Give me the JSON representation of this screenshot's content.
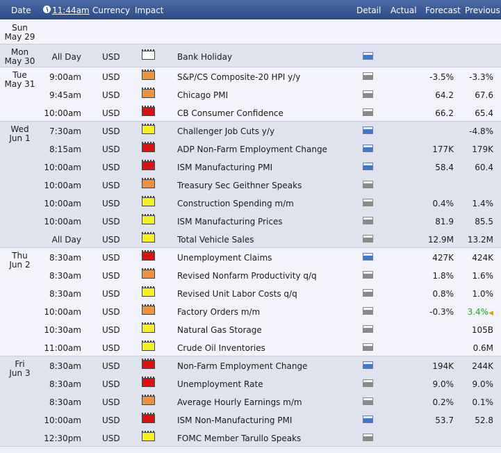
{
  "header": {
    "date": "Date",
    "time": "11:44am",
    "currency": "Currency",
    "impact": "Impact",
    "detail": "Detail",
    "actual": "Actual",
    "forecast": "Forecast",
    "previous": "Previous"
  },
  "colors": {
    "high": "#e01010",
    "medium": "#f3913a",
    "low": "#f7f21c",
    "holiday": "#ffffff",
    "header": "#2c4b87",
    "up": "#22a022"
  },
  "days": [
    {
      "day": "Sun",
      "date": "May 29",
      "events": []
    },
    {
      "day": "Mon",
      "date": "May 30",
      "events": [
        {
          "time": "All Day",
          "currency": "USD",
          "impact": "none",
          "event": "Bank Holiday",
          "detail": "blue-icon",
          "forecast": "",
          "previous": ""
        }
      ]
    },
    {
      "day": "Tue",
      "date": "May 31",
      "events": [
        {
          "time": "9:00am",
          "currency": "USD",
          "impact": "medium",
          "event": "S&P/CS Composite-20 HPI y/y",
          "detail": "gray-icon",
          "forecast": "-3.5%",
          "previous": "-3.3%"
        },
        {
          "time": "9:45am",
          "currency": "USD",
          "impact": "medium",
          "event": "Chicago PMI",
          "detail": "gray-icon",
          "forecast": "64.2",
          "previous": "67.6"
        },
        {
          "time": "10:00am",
          "currency": "USD",
          "impact": "high",
          "event": "CB Consumer Confidence",
          "detail": "gray-icon",
          "forecast": "66.2",
          "previous": "65.4"
        }
      ]
    },
    {
      "day": "Wed",
      "date": "Jun 1",
      "events": [
        {
          "time": "7:30am",
          "currency": "USD",
          "impact": "low",
          "event": "Challenger Job Cuts y/y",
          "detail": "blue-icon",
          "forecast": "",
          "previous": "-4.8%"
        },
        {
          "time": "8:15am",
          "currency": "USD",
          "impact": "high",
          "event": "ADP Non-Farm Employment Change",
          "detail": "blue-icon",
          "forecast": "177K",
          "previous": "179K"
        },
        {
          "time": "10:00am",
          "currency": "USD",
          "impact": "high",
          "event": "ISM Manufacturing PMI",
          "detail": "blue-icon",
          "forecast": "58.4",
          "previous": "60.4"
        },
        {
          "time": "10:00am",
          "currency": "USD",
          "impact": "medium",
          "event": "Treasury Sec Geithner Speaks",
          "detail": "gray-icon",
          "forecast": "",
          "previous": ""
        },
        {
          "time": "10:00am",
          "currency": "USD",
          "impact": "low",
          "event": "Construction Spending m/m",
          "detail": "gray-icon",
          "forecast": "0.4%",
          "previous": "1.4%"
        },
        {
          "time": "10:00am",
          "currency": "USD",
          "impact": "low",
          "event": "ISM Manufacturing Prices",
          "detail": "gray-icon",
          "forecast": "81.9",
          "previous": "85.5"
        },
        {
          "time": "All Day",
          "currency": "USD",
          "impact": "low",
          "event": "Total Vehicle Sales",
          "detail": "gray-icon",
          "forecast": "12.9M",
          "previous": "13.2M"
        }
      ]
    },
    {
      "day": "Thu",
      "date": "Jun 2",
      "events": [
        {
          "time": "8:30am",
          "currency": "USD",
          "impact": "high",
          "event": "Unemployment Claims",
          "detail": "blue-icon",
          "forecast": "427K",
          "previous": "424K"
        },
        {
          "time": "8:30am",
          "currency": "USD",
          "impact": "medium",
          "event": "Revised Nonfarm Productivity q/q",
          "detail": "gray-icon",
          "forecast": "1.8%",
          "previous": "1.6%"
        },
        {
          "time": "8:30am",
          "currency": "USD",
          "impact": "low",
          "event": "Revised Unit Labor Costs q/q",
          "detail": "gray-icon",
          "forecast": "0.8%",
          "previous": "1.0%"
        },
        {
          "time": "10:00am",
          "currency": "USD",
          "impact": "medium",
          "event": "Factory Orders m/m",
          "detail": "gray-icon",
          "forecast": "-0.3%",
          "previous": "3.4%",
          "revised": true
        },
        {
          "time": "10:30am",
          "currency": "USD",
          "impact": "low",
          "event": "Natural Gas Storage",
          "detail": "gray-icon",
          "forecast": "",
          "previous": "105B"
        },
        {
          "time": "11:00am",
          "currency": "USD",
          "impact": "low",
          "event": "Crude Oil Inventories",
          "detail": "gray-icon",
          "forecast": "",
          "previous": "0.6M"
        }
      ]
    },
    {
      "day": "Fri",
      "date": "Jun 3",
      "events": [
        {
          "time": "8:30am",
          "currency": "USD",
          "impact": "high",
          "event": "Non-Farm Employment Change",
          "detail": "blue-icon",
          "forecast": "194K",
          "previous": "244K"
        },
        {
          "time": "8:30am",
          "currency": "USD",
          "impact": "high",
          "event": "Unemployment Rate",
          "detail": "gray-icon",
          "forecast": "9.0%",
          "previous": "9.0%"
        },
        {
          "time": "8:30am",
          "currency": "USD",
          "impact": "medium",
          "event": "Average Hourly Earnings m/m",
          "detail": "gray-icon",
          "forecast": "0.2%",
          "previous": "0.1%"
        },
        {
          "time": "10:00am",
          "currency": "USD",
          "impact": "high",
          "event": "ISM Non-Manufacturing PMI",
          "detail": "blue-icon",
          "forecast": "53.7",
          "previous": "52.8"
        },
        {
          "time": "12:30pm",
          "currency": "USD",
          "impact": "low",
          "event": "FOMC Member Tarullo Speaks",
          "detail": "gray-icon",
          "forecast": "",
          "previous": ""
        }
      ]
    }
  ]
}
